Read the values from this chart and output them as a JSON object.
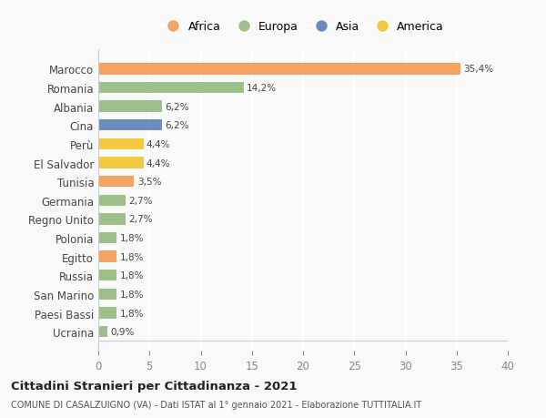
{
  "countries": [
    "Marocco",
    "Romania",
    "Albania",
    "Cina",
    "Perù",
    "El Salvador",
    "Tunisia",
    "Germania",
    "Regno Unito",
    "Polonia",
    "Egitto",
    "Russia",
    "San Marino",
    "Paesi Bassi",
    "Ucraina"
  ],
  "values": [
    35.4,
    14.2,
    6.2,
    6.2,
    4.4,
    4.4,
    3.5,
    2.7,
    2.7,
    1.8,
    1.8,
    1.8,
    1.8,
    1.8,
    0.9
  ],
  "labels": [
    "35,4%",
    "14,2%",
    "6,2%",
    "6,2%",
    "4,4%",
    "4,4%",
    "3,5%",
    "2,7%",
    "2,7%",
    "1,8%",
    "1,8%",
    "1,8%",
    "1,8%",
    "1,8%",
    "0,9%"
  ],
  "colors": [
    "#F4A460",
    "#9DC08B",
    "#9DC08B",
    "#6B8CBF",
    "#F5C842",
    "#F5C842",
    "#F4A460",
    "#9DC08B",
    "#9DC08B",
    "#9DC08B",
    "#F4A460",
    "#9DC08B",
    "#9DC08B",
    "#9DC08B",
    "#9DC08B"
  ],
  "legend_labels": [
    "Africa",
    "Europa",
    "Asia",
    "America"
  ],
  "legend_colors": [
    "#F4A460",
    "#9DC08B",
    "#6B8CBF",
    "#F5C842"
  ],
  "xlim": [
    0,
    40
  ],
  "xticks": [
    0,
    5,
    10,
    15,
    20,
    25,
    30,
    35,
    40
  ],
  "title": "Cittadini Stranieri per Cittadinanza - 2021",
  "subtitle": "COMUNE DI CASALZUIGNO (VA) - Dati ISTAT al 1° gennaio 2021 - Elaborazione TUTTITALIA.IT",
  "background_color": "#f9f9f9",
  "grid_color": "#ffffff"
}
